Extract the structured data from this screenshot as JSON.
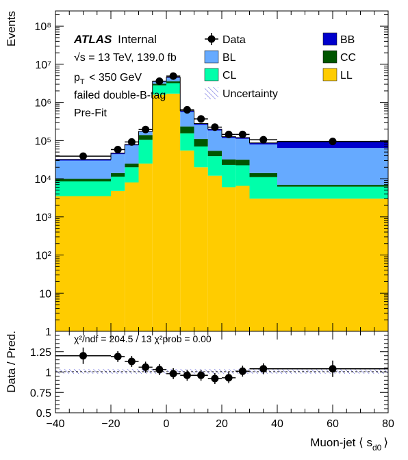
{
  "chart_data": [
    {
      "type": "stacked-histogram",
      "ylabel": "Events",
      "yscale": "log",
      "ylim": [
        1,
        250000000
      ],
      "xlim": [
        -40,
        80
      ],
      "atlas_label": "ATLAS",
      "atlas_suffix": "Internal",
      "info_lines": [
        "√s = 13 TeV, 139.0 fb",
        "p_T < 350 GeV",
        "failed double-B-tag",
        "Pre-Fit"
      ],
      "legend": {
        "data": "Data",
        "uncertainty": "Uncertainty",
        "entries": [
          {
            "key": "BB",
            "label": "BB",
            "color": "#0000cc"
          },
          {
            "key": "BL",
            "label": "BL",
            "color": "#66aaff"
          },
          {
            "key": "CC",
            "label": "CC",
            "color": "#005500"
          },
          {
            "key": "CL",
            "label": "CL",
            "color": "#00ffaa"
          },
          {
            "key": "LL",
            "label": "LL",
            "color": "#ffcc00"
          }
        ]
      },
      "y_ticks": [
        {
          "v": 1,
          "label": "1"
        },
        {
          "v": 10,
          "label": "10"
        },
        {
          "v": 100,
          "label": "10²"
        },
        {
          "v": 1000,
          "label": "10³"
        },
        {
          "v": 10000,
          "label": "10⁴"
        },
        {
          "v": 100000,
          "label": "10⁵"
        },
        {
          "v": 1000000,
          "label": "10⁶"
        },
        {
          "v": 10000000,
          "label": "10⁷"
        },
        {
          "v": 100000000,
          "label": "10⁸"
        }
      ],
      "bin_edges": [
        -40,
        -20,
        -15,
        -10,
        -5,
        0,
        5,
        10,
        15,
        20,
        25,
        30,
        40,
        80
      ],
      "series": [
        {
          "name": "LL",
          "color": "#ffcc00",
          "values": [
            3500,
            4800,
            8000,
            25000,
            1600000,
            1700000,
            55000,
            20000,
            12000,
            6000,
            6500,
            3000,
            3000
          ]
        },
        {
          "name": "CL",
          "color": "#00ffaa",
          "values": [
            5000,
            6500,
            12000,
            80000,
            1200000,
            1500000,
            100000,
            50000,
            27000,
            17000,
            16000,
            8000,
            3200
          ]
        },
        {
          "name": "CC",
          "color": "#005500",
          "values": [
            1500,
            2700,
            5000,
            35000,
            300000,
            400000,
            80000,
            40000,
            15000,
            9000,
            9000,
            3000,
            700
          ]
        },
        {
          "name": "BL",
          "color": "#66aaff",
          "values": [
            20000,
            30000,
            50000,
            30000,
            400000,
            800000,
            330000,
            150000,
            130000,
            85000,
            80000,
            65000,
            57100
          ]
        },
        {
          "name": "BB",
          "color": "#0000cc",
          "values": [
            2000,
            3000,
            4000,
            5000,
            100000,
            200000,
            40000,
            20000,
            15000,
            10000,
            8500,
            8000,
            30000
          ]
        }
      ],
      "data_points": [
        {
          "x": -30,
          "y": 39000,
          "xerr": 10
        },
        {
          "x": -17.5,
          "y": 58000,
          "xerr": 2.5
        },
        {
          "x": -12.5,
          "y": 92000,
          "xerr": 2.5
        },
        {
          "x": -7.5,
          "y": 195000,
          "xerr": 2.5
        },
        {
          "x": -2.5,
          "y": 3600000,
          "xerr": 2.5
        },
        {
          "x": 2.5,
          "y": 4900000,
          "xerr": 2.5
        },
        {
          "x": 7.5,
          "y": 640000,
          "xerr": 2.5
        },
        {
          "x": 12.5,
          "y": 370000,
          "xerr": 2.5
        },
        {
          "x": 17.5,
          "y": 225000,
          "xerr": 2.5
        },
        {
          "x": 22.5,
          "y": 145000,
          "xerr": 2.5
        },
        {
          "x": 27.5,
          "y": 145000,
          "xerr": 2.5
        },
        {
          "x": 35,
          "y": 105000,
          "xerr": 5
        },
        {
          "x": 60,
          "y": 95000,
          "xerr": 20
        }
      ]
    },
    {
      "type": "ratio",
      "ylabel": "Data / Pred.",
      "xlabel": "Muon-jet ⟨ s",
      "xlabel_sub": "d0",
      "xlabel_close": "⟩",
      "ylim": [
        0.5,
        1.5
      ],
      "xlim": [
        -40,
        80
      ],
      "stats": "χ²/ndf = 204.5 / 13     χ²prob = 0.00",
      "y_ticks": [
        {
          "v": 0.5,
          "label": "0.5"
        },
        {
          "v": 0.75,
          "label": "0.75"
        },
        {
          "v": 1,
          "label": "1"
        },
        {
          "v": 1.25,
          "label": "1.25"
        }
      ],
      "x_ticks": [
        {
          "v": -40,
          "label": "−40"
        },
        {
          "v": -20,
          "label": "−20"
        },
        {
          "v": 0,
          "label": "0"
        },
        {
          "v": 20,
          "label": "20"
        },
        {
          "v": 40,
          "label": "40"
        },
        {
          "v": 60,
          "label": "60"
        },
        {
          "v": 80,
          "label": "80"
        }
      ],
      "points": [
        {
          "x": -30,
          "y": 1.2,
          "xerr": 10
        },
        {
          "x": -17.5,
          "y": 1.19,
          "xerr": 2.5
        },
        {
          "x": -12.5,
          "y": 1.13,
          "xerr": 2.5
        },
        {
          "x": -7.5,
          "y": 1.06,
          "xerr": 2.5
        },
        {
          "x": -2.5,
          "y": 1.03,
          "xerr": 2.5
        },
        {
          "x": 2.5,
          "y": 0.98,
          "xerr": 2.5
        },
        {
          "x": 7.5,
          "y": 0.96,
          "xerr": 2.5
        },
        {
          "x": 12.5,
          "y": 0.96,
          "xerr": 2.5
        },
        {
          "x": 17.5,
          "y": 0.92,
          "xerr": 2.5
        },
        {
          "x": 22.5,
          "y": 0.93,
          "xerr": 2.5
        },
        {
          "x": 27.5,
          "y": 1.01,
          "xerr": 2.5
        },
        {
          "x": 35,
          "y": 1.04,
          "xerr": 5
        },
        {
          "x": 60,
          "y": 1.04,
          "xerr": 20
        }
      ]
    }
  ]
}
